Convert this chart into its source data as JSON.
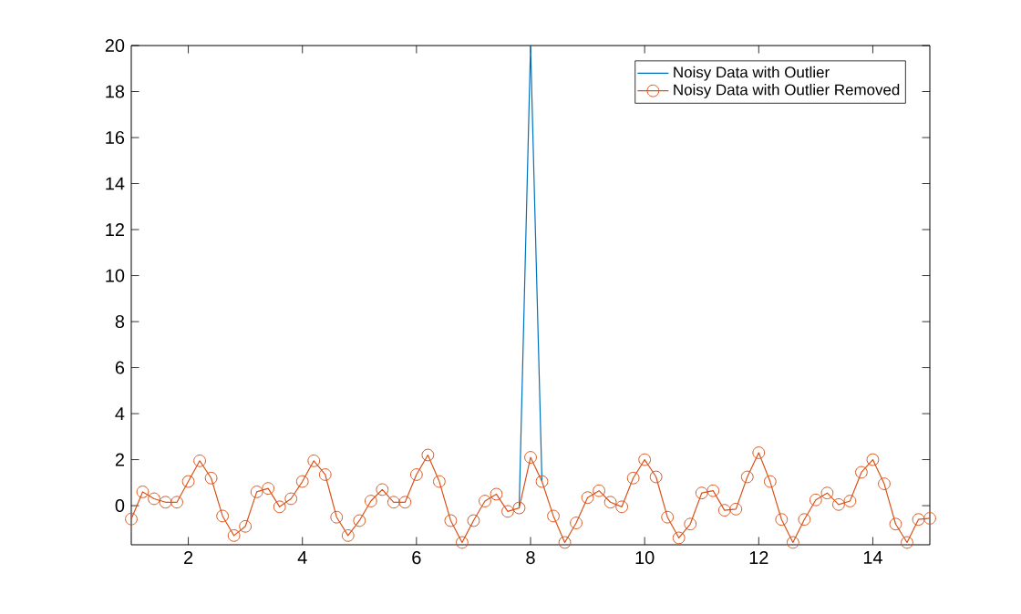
{
  "chart_data": {
    "type": "line",
    "x": [
      1.0,
      1.2,
      1.4,
      1.6,
      1.8,
      2.0,
      2.2,
      2.4,
      2.6,
      2.8,
      3.0,
      3.2,
      3.4,
      3.6,
      3.8,
      4.0,
      4.2,
      4.4,
      4.6,
      4.8,
      5.0,
      5.2,
      5.4,
      5.6,
      5.8,
      6.0,
      6.2,
      6.4,
      6.6,
      6.8,
      7.0,
      7.2,
      7.4,
      7.6,
      7.8,
      8.0,
      8.2,
      8.4,
      8.6,
      8.8,
      9.0,
      9.2,
      9.4,
      9.6,
      9.8,
      10.0,
      10.2,
      10.4,
      10.6,
      10.8,
      11.0,
      11.2,
      11.4,
      11.6,
      11.8,
      12.0,
      12.2,
      12.4,
      12.6,
      12.8,
      13.0,
      13.2,
      13.4,
      13.6,
      13.8,
      14.0,
      14.2,
      14.4,
      14.6,
      14.8,
      15.0
    ],
    "series": [
      {
        "name": "Noisy Data with Outlier",
        "color": "#0072bd",
        "marker": "none",
        "values": [
          null,
          null,
          null,
          null,
          null,
          null,
          null,
          null,
          null,
          null,
          null,
          null,
          null,
          null,
          null,
          null,
          null,
          null,
          null,
          null,
          null,
          null,
          null,
          null,
          null,
          null,
          null,
          null,
          null,
          null,
          null,
          null,
          null,
          null,
          -0.1,
          20,
          1.05,
          null,
          null,
          null,
          null,
          null,
          null,
          null,
          null,
          null,
          null,
          null,
          null,
          null,
          null,
          null,
          null,
          null,
          null,
          null,
          null,
          null,
          null,
          null,
          null,
          null,
          null,
          null,
          null,
          null,
          null,
          null,
          null,
          null,
          null
        ]
      },
      {
        "name": "Noisy Data with Outlier Removed",
        "color": "#d95319",
        "marker": "circle",
        "values": [
          -0.58,
          0.6,
          0.3,
          0.15,
          0.15,
          1.05,
          1.95,
          1.2,
          -0.45,
          -1.3,
          -0.9,
          0.6,
          0.75,
          -0.05,
          0.3,
          1.05,
          1.95,
          1.35,
          -0.5,
          -1.3,
          -0.65,
          0.2,
          0.7,
          0.15,
          0.15,
          1.35,
          2.2,
          1.05,
          -0.65,
          -1.6,
          -0.65,
          0.2,
          0.5,
          -0.25,
          -0.1,
          2.1,
          1.05,
          -0.45,
          -1.6,
          -0.75,
          0.35,
          0.65,
          0.15,
          -0.05,
          1.2,
          2.0,
          1.25,
          -0.5,
          -1.4,
          -0.8,
          0.55,
          0.65,
          -0.2,
          -0.15,
          1.25,
          2.3,
          1.05,
          -0.6,
          -1.6,
          -0.6,
          0.25,
          0.55,
          0.05,
          0.2,
          1.45,
          2.0,
          0.95,
          -0.8,
          -1.6,
          -0.6,
          -0.55
        ]
      }
    ],
    "xlim": [
      1,
      15
    ],
    "ylim": [
      -1.7,
      20
    ],
    "xticks": [
      2,
      4,
      6,
      8,
      10,
      12,
      14
    ],
    "yticks": [
      0,
      2,
      4,
      6,
      8,
      10,
      12,
      14,
      16,
      18,
      20
    ],
    "grid": false,
    "legend": "top right"
  }
}
